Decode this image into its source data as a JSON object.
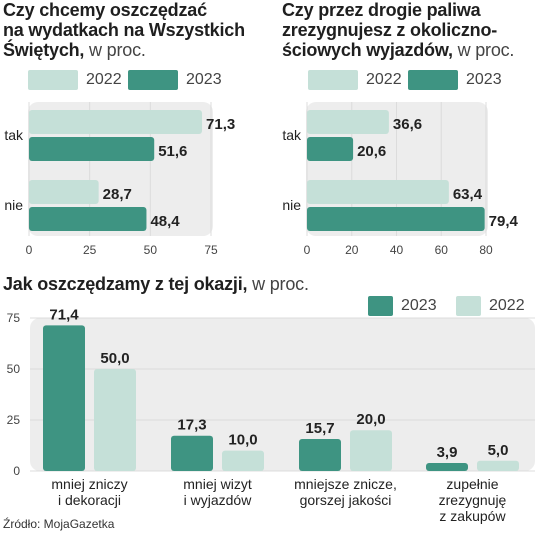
{
  "colors": {
    "y2023": "#3e9482",
    "y2022": "#c5e0d8",
    "panel": "#ededed",
    "grid": "#dcdcdc"
  },
  "source": "Źródło: MojaGazetka",
  "chart_data": [
    {
      "type": "bar",
      "orientation": "horizontal",
      "title": "Czy chcemy oszczędzać na wydatkach na Wszystkich Świętych,",
      "title_lines": [
        "Czy chcemy oszczędzać",
        "na wydatkach na Wszystkich",
        "Świętych,"
      ],
      "unit": "w proc.",
      "categories": [
        "tak",
        "nie"
      ],
      "series": [
        {
          "name": "2022",
          "values": [
            71.3,
            28.7
          ]
        },
        {
          "name": "2023",
          "values": [
            51.6,
            48.4
          ]
        }
      ],
      "data_labels": [
        [
          "71,3",
          "28,7"
        ],
        [
          "51,6",
          "48,4"
        ]
      ],
      "xlim": [
        0,
        75
      ],
      "ticks": [
        "0",
        "25",
        "50",
        "75"
      ],
      "legend": [
        "2022",
        "2023"
      ],
      "grid": true
    },
    {
      "type": "bar",
      "orientation": "horizontal",
      "title": "Czy przez drogie paliwa zrezygnujesz z okoliczno-ściowych wyjazdów,",
      "title_lines": [
        "Czy przez drogie paliwa",
        "zrezygnujesz z okoliczno-",
        "ściowych wyjazdów,"
      ],
      "unit": "w proc.",
      "categories": [
        "tak",
        "nie"
      ],
      "series": [
        {
          "name": "2022",
          "values": [
            36.6,
            63.4
          ]
        },
        {
          "name": "2023",
          "values": [
            20.6,
            79.4
          ]
        }
      ],
      "data_labels": [
        [
          "36,6",
          "63,4"
        ],
        [
          "20,6",
          "79,4"
        ]
      ],
      "xlim": [
        0,
        80
      ],
      "ticks": [
        "0",
        "20",
        "40",
        "60",
        "80"
      ],
      "legend": [
        "2022",
        "2023"
      ],
      "grid": true
    },
    {
      "type": "bar",
      "orientation": "vertical",
      "title": "Jak oszczędzamy z tej okazji,",
      "unit": "w proc.",
      "categories": [
        [
          "mniej zniczy",
          "i dekoracji"
        ],
        [
          "mniej wizyt",
          "i wyjazdów"
        ],
        [
          "mniejsze znicze,",
          "gorszej jakości"
        ],
        [
          "zupełnie",
          "zrezygnuję",
          "z zakupów"
        ]
      ],
      "series": [
        {
          "name": "2023",
          "values": [
            71.4,
            17.3,
            15.7,
            3.9
          ]
        },
        {
          "name": "2022",
          "values": [
            50.0,
            10.0,
            20.0,
            5.0
          ]
        }
      ],
      "data_labels": [
        [
          "71,4",
          "17,3",
          "15,7",
          "3,9"
        ],
        [
          "50,0",
          "10,0",
          "20,0",
          "5,0"
        ]
      ],
      "ylim": [
        0,
        75
      ],
      "ticks": [
        "0",
        "25",
        "50",
        "75"
      ],
      "legend": [
        "2023",
        "2022"
      ],
      "grid": true
    }
  ]
}
